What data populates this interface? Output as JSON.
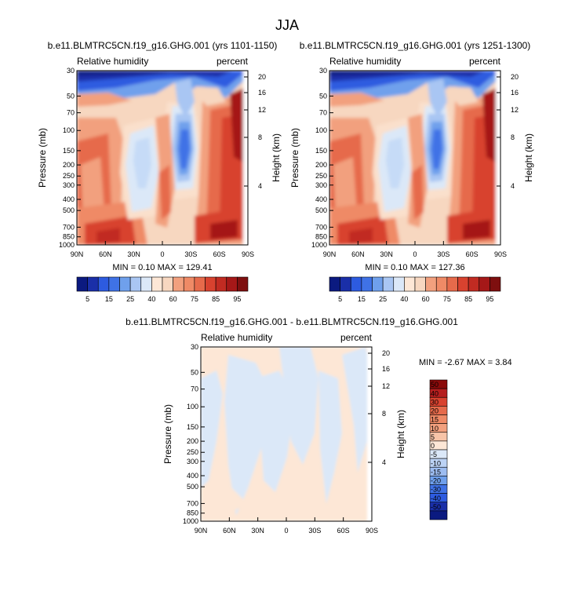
{
  "figure": {
    "title": "JJA"
  },
  "chart_data": [
    {
      "type": "heatmap",
      "title": "b.e11.BLMTRC5CN.f19_g16.GHG.001 (yrs 1101-1150)",
      "left_label": "Relative humidity",
      "right_label": "percent",
      "xlabel": "",
      "ylabel": "Pressure (mb)",
      "y2label": "Height (km)",
      "x_ticks": [
        "90N",
        "60N",
        "30N",
        "0",
        "30S",
        "60S",
        "90S"
      ],
      "y_ticks": [
        "30",
        "50",
        "70",
        "100",
        "150",
        "200",
        "250",
        "300",
        "400",
        "500",
        "700",
        "850",
        "1000"
      ],
      "y2_ticks": [
        "20",
        "16",
        "12",
        "8",
        "4"
      ],
      "stats": "MIN =  0.10  MAX = 129.41",
      "colorbar_labels": [
        "5",
        "15",
        "25",
        "40",
        "60",
        "75",
        "85",
        "95"
      ]
    },
    {
      "type": "heatmap",
      "title": "b.e11.BLMTRC5CN.f19_g16.GHG.001 (yrs 1251-1300)",
      "left_label": "Relative humidity",
      "right_label": "percent",
      "xlabel": "",
      "ylabel": "Pressure (mb)",
      "y2label": "Height (km)",
      "x_ticks": [
        "90N",
        "60N",
        "30N",
        "0",
        "30S",
        "60S",
        "90S"
      ],
      "y_ticks": [
        "30",
        "50",
        "70",
        "100",
        "150",
        "200",
        "250",
        "300",
        "400",
        "500",
        "700",
        "850",
        "1000"
      ],
      "y2_ticks": [
        "20",
        "16",
        "12",
        "8",
        "4"
      ],
      "stats": "MIN =  0.10  MAX = 127.36",
      "colorbar_labels": [
        "5",
        "15",
        "25",
        "40",
        "60",
        "75",
        "85",
        "95"
      ]
    },
    {
      "type": "heatmap",
      "title": "b.e11.BLMTRC5CN.f19_g16.GHG.001 - b.e11.BLMTRC5CN.f19_g16.GHG.001",
      "left_label": "Relative humidity",
      "right_label": "percent",
      "xlabel": "",
      "ylabel": "Pressure (mb)",
      "y2label": "Height (km)",
      "x_ticks": [
        "90N",
        "60N",
        "30N",
        "0",
        "30S",
        "60S",
        "90S"
      ],
      "y_ticks": [
        "30",
        "50",
        "70",
        "100",
        "150",
        "200",
        "250",
        "300",
        "400",
        "500",
        "700",
        "850",
        "1000"
      ],
      "y2_ticks": [
        "20",
        "16",
        "12",
        "8",
        "4"
      ],
      "stats": "MIN = -2.67  MAX =  3.84",
      "colorbar_labels": [
        "50",
        "40",
        "30",
        "20",
        "15",
        "10",
        "5",
        "0",
        "-5",
        "-10",
        "-15",
        "-20",
        "-30",
        "-40",
        "-50"
      ]
    }
  ]
}
